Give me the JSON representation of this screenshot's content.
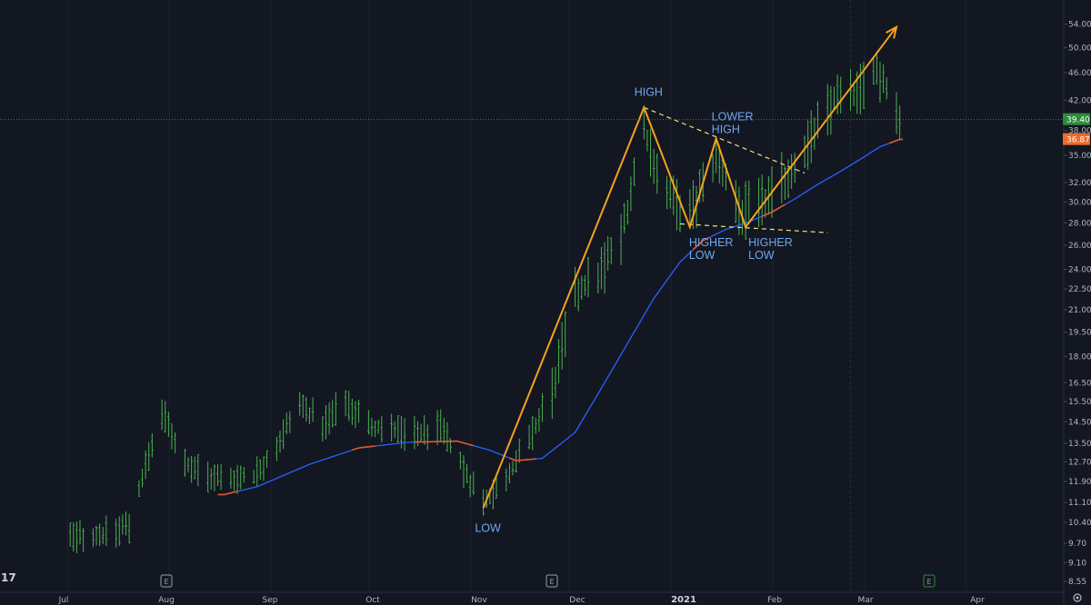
{
  "chart_data": {
    "type": "ohlc",
    "scale": "log",
    "grid": "vertical",
    "colors": {
      "background": "#131722",
      "bar": "#4caf50",
      "moving_average": "#2962ff",
      "ma_down": "#e05a2b",
      "annotation_line": "#f7a21b",
      "trend_line": "#f5e27a",
      "label": "#6fa8f0",
      "last_price_badge": "#2e8b3a",
      "ma_value_badge": "#f06a28"
    },
    "x_tick_labels": [
      "Jul",
      "Aug",
      "Sep",
      "Oct",
      "Nov",
      "Dec",
      "2021",
      "Feb",
      "Mar",
      "Apr"
    ],
    "y_tick_labels": [
      "54.00",
      "50.00",
      "46.00",
      "42.00",
      "38.00",
      "35.00",
      "32.00",
      "30.00",
      "28.00",
      "26.00",
      "24.00",
      "22.50",
      "21.00",
      "19.50",
      "18.00",
      "16.50",
      "15.50",
      "14.50",
      "13.50",
      "12.70",
      "11.90",
      "11.10",
      "10.40",
      "9.70",
      "9.10",
      "8.55"
    ],
    "y_tick_values": [
      54,
      50,
      46,
      42,
      38,
      35,
      32,
      30,
      28,
      26,
      24,
      22.5,
      21,
      19.5,
      18,
      16.5,
      15.5,
      14.5,
      13.5,
      12.7,
      11.9,
      11.1,
      10.4,
      9.7,
      9.1,
      8.55
    ],
    "ylim": [
      8.3,
      58.5
    ],
    "last_price": "39.40",
    "last_price_value": 39.4,
    "ma_value": "36.87",
    "ma_value_num": 36.87,
    "event_markers": [
      "E",
      "E",
      "E"
    ],
    "logo": "17",
    "annotations": {
      "low": "LOW",
      "high": "HIGH",
      "lower_high": [
        "LOWER",
        "HIGH"
      ],
      "higher_low_1": [
        "HIGHER",
        "LOW"
      ],
      "higher_low_2": [
        "HIGHER",
        "LOW"
      ]
    },
    "pattern_path": [
      {
        "date": "2020-11-02",
        "value": 10.9
      },
      {
        "date": "2020-12-21",
        "value": 41.0
      },
      {
        "date": "2021-01-04",
        "value": 27.6
      },
      {
        "date": "2021-01-12",
        "value": 37.0
      },
      {
        "date": "2021-01-21",
        "value": 27.6
      },
      {
        "date": "2021-03-08",
        "value": 53.5
      }
    ],
    "resistance_line": [
      {
        "date": "2020-12-21",
        "value": 41.0
      },
      {
        "date": "2021-02-08",
        "value": 33.0
      }
    ],
    "support_line": [
      {
        "date": "2021-01-01",
        "value": 27.9
      },
      {
        "date": "2021-02-15",
        "value": 27.1
      }
    ],
    "series": [
      {
        "type": "moving_average",
        "points": [
          {
            "date": "2020-08-15",
            "value": 11.4
          },
          {
            "date": "2020-08-25",
            "value": 11.7
          },
          {
            "date": "2020-09-10",
            "value": 12.6
          },
          {
            "date": "2020-09-25",
            "value": 13.3
          },
          {
            "date": "2020-10-10",
            "value": 13.55
          },
          {
            "date": "2020-10-25",
            "value": 13.6
          },
          {
            "date": "2020-11-04",
            "value": 13.2
          },
          {
            "date": "2020-11-12",
            "value": 12.75
          },
          {
            "date": "2020-11-20",
            "value": 12.85
          },
          {
            "date": "2020-11-30",
            "value": 14.0
          },
          {
            "date": "2020-12-08",
            "value": 16.2
          },
          {
            "date": "2020-12-16",
            "value": 18.8
          },
          {
            "date": "2020-12-24",
            "value": 21.8
          },
          {
            "date": "2021-01-01",
            "value": 24.6
          },
          {
            "date": "2021-01-08",
            "value": 26.4
          },
          {
            "date": "2021-01-15",
            "value": 27.4
          },
          {
            "date": "2021-01-22",
            "value": 28.1
          },
          {
            "date": "2021-01-29",
            "value": 29.0
          },
          {
            "date": "2021-02-05",
            "value": 30.3
          },
          {
            "date": "2021-02-12",
            "value": 31.8
          },
          {
            "date": "2021-02-19",
            "value": 33.2
          },
          {
            "date": "2021-02-26",
            "value": 34.8
          },
          {
            "date": "2021-03-03",
            "value": 36.0
          },
          {
            "date": "2021-03-09",
            "value": 36.9
          }
        ]
      },
      {
        "type": "price_anchors",
        "points": [
          {
            "date": "2020-06-29",
            "value": 9.9
          },
          {
            "date": "2020-07-10",
            "value": 10.0
          },
          {
            "date": "2020-07-17",
            "value": 10.3
          },
          {
            "date": "2020-07-20",
            "value": 11.6
          },
          {
            "date": "2020-07-27",
            "value": 15.0
          },
          {
            "date": "2020-08-03",
            "value": 12.7
          },
          {
            "date": "2020-08-12",
            "value": 12.0
          },
          {
            "date": "2020-08-24",
            "value": 12.1
          },
          {
            "date": "2020-08-31",
            "value": 13.4
          },
          {
            "date": "2020-09-07",
            "value": 15.3
          },
          {
            "date": "2020-09-14",
            "value": 14.4
          },
          {
            "date": "2020-09-21",
            "value": 15.6
          },
          {
            "date": "2020-09-28",
            "value": 14.3
          },
          {
            "date": "2020-10-05",
            "value": 14.1
          },
          {
            "date": "2020-10-12",
            "value": 13.9
          },
          {
            "date": "2020-10-20",
            "value": 14.2
          },
          {
            "date": "2020-10-27",
            "value": 12.4
          },
          {
            "date": "2020-11-02",
            "value": 11.1
          },
          {
            "date": "2020-11-09",
            "value": 12.1
          },
          {
            "date": "2020-11-16",
            "value": 13.6
          },
          {
            "date": "2020-11-23",
            "value": 16.0
          },
          {
            "date": "2020-11-30",
            "value": 22.0
          },
          {
            "date": "2020-12-07",
            "value": 23.5
          },
          {
            "date": "2020-12-14",
            "value": 26.5
          },
          {
            "date": "2020-12-21",
            "value": 38.0
          },
          {
            "date": "2020-12-28",
            "value": 30.5
          },
          {
            "date": "2021-01-04",
            "value": 28.8
          },
          {
            "date": "2021-01-12",
            "value": 34.5
          },
          {
            "date": "2021-01-20",
            "value": 29.0
          },
          {
            "date": "2021-01-27",
            "value": 30.0
          },
          {
            "date": "2021-02-03",
            "value": 33.0
          },
          {
            "date": "2021-02-10",
            "value": 37.0
          },
          {
            "date": "2021-02-17",
            "value": 42.0
          },
          {
            "date": "2021-02-24",
            "value": 42.5
          },
          {
            "date": "2021-03-01",
            "value": 47.0
          },
          {
            "date": "2021-03-05",
            "value": 44.0
          },
          {
            "date": "2021-03-09",
            "value": 39.4
          }
        ]
      }
    ]
  }
}
